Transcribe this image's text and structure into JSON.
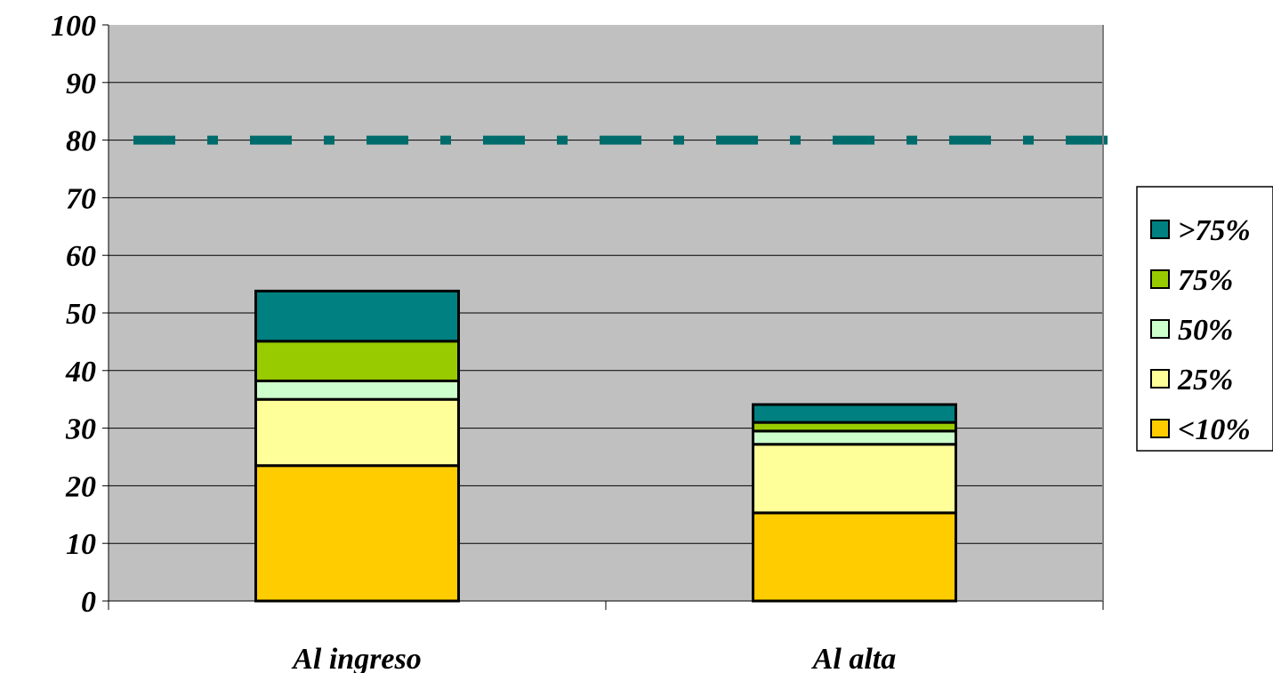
{
  "chart_data": {
    "type": "bar",
    "stacked": true,
    "categories": [
      "Al ingreso",
      "Al alta"
    ],
    "series": [
      {
        "name": "<10%",
        "values": [
          23.5,
          15.3
        ],
        "color": "#ffcc00"
      },
      {
        "name": "25%",
        "values": [
          11.5,
          11.9
        ],
        "color": "#ffff99"
      },
      {
        "name": "50%",
        "values": [
          3.2,
          2.3
        ],
        "color": "#ccffcc"
      },
      {
        "name": "75%",
        "values": [
          6.9,
          1.5
        ],
        "color": "#99cc00"
      },
      {
        "name": ">75%",
        "values": [
          8.7,
          3.1
        ],
        "color": "#008080"
      }
    ],
    "legend_order": [
      ">75%",
      "75%",
      "50%",
      "25%",
      "<10%"
    ],
    "reference_line": {
      "value": 80,
      "style": "dash-dot",
      "color": "#006b6b"
    },
    "ylim": [
      0,
      100
    ],
    "yticks": [
      "0",
      "10",
      "20",
      "30",
      "40",
      "50",
      "60",
      "70",
      "80",
      "90",
      "100"
    ],
    "grid": true,
    "plot_background": "#c0c0c0",
    "legend_position": "right",
    "title": "",
    "xlabel": "",
    "ylabel": ""
  }
}
